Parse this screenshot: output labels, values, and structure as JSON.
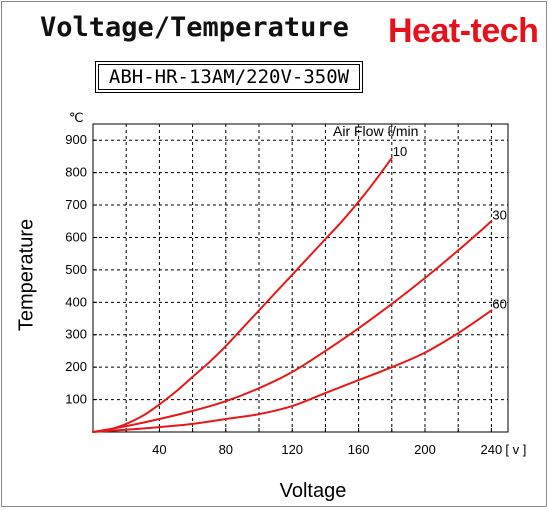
{
  "header": {
    "title": "Voltage/Temperature",
    "brand": "Heat-tech",
    "model": "ABH-HR-13AM/220V-350W"
  },
  "colors": {
    "curve": "#e81818",
    "brand": "#e8101a",
    "grid": "#000000"
  },
  "chart_data": {
    "type": "line",
    "xlabel": "Voltage",
    "ylabel": "Temperature",
    "x_unit": "[ v ]",
    "y_unit": "℃",
    "xlim": [
      0,
      250
    ],
    "ylim": [
      0,
      950
    ],
    "x_ticks": [
      40,
      80,
      120,
      160,
      200,
      240
    ],
    "y_ticks": [
      100,
      200,
      300,
      400,
      500,
      600,
      700,
      800,
      900
    ],
    "x_tick_labels": [
      "40",
      "80",
      "120",
      "160",
      "200",
      "240"
    ],
    "y_tick_labels": [
      "100",
      "200",
      "300",
      "400",
      "500",
      "600",
      "700",
      "800",
      "900"
    ],
    "grid": true,
    "legend_title": "Air Flow ℓ/min",
    "series": [
      {
        "name": "10",
        "x": [
          0,
          10,
          20,
          30,
          40,
          50,
          60,
          70,
          80,
          90,
          100,
          110,
          120,
          130,
          140,
          150,
          160,
          170,
          180
        ],
        "y": [
          0,
          8,
          25,
          50,
          85,
          125,
          170,
          215,
          265,
          320,
          375,
          430,
          485,
          540,
          595,
          650,
          710,
          775,
          845
        ]
      },
      {
        "name": "30",
        "x": [
          0,
          20,
          40,
          60,
          80,
          100,
          120,
          140,
          160,
          180,
          200,
          220,
          240
        ],
        "y": [
          0,
          18,
          40,
          65,
          95,
          135,
          185,
          250,
          320,
          395,
          475,
          560,
          650
        ]
      },
      {
        "name": "60",
        "x": [
          0,
          20,
          40,
          60,
          80,
          100,
          120,
          140,
          160,
          180,
          200,
          220,
          240
        ],
        "y": [
          0,
          7,
          15,
          25,
          40,
          55,
          80,
          120,
          160,
          200,
          245,
          305,
          375
        ]
      }
    ]
  }
}
